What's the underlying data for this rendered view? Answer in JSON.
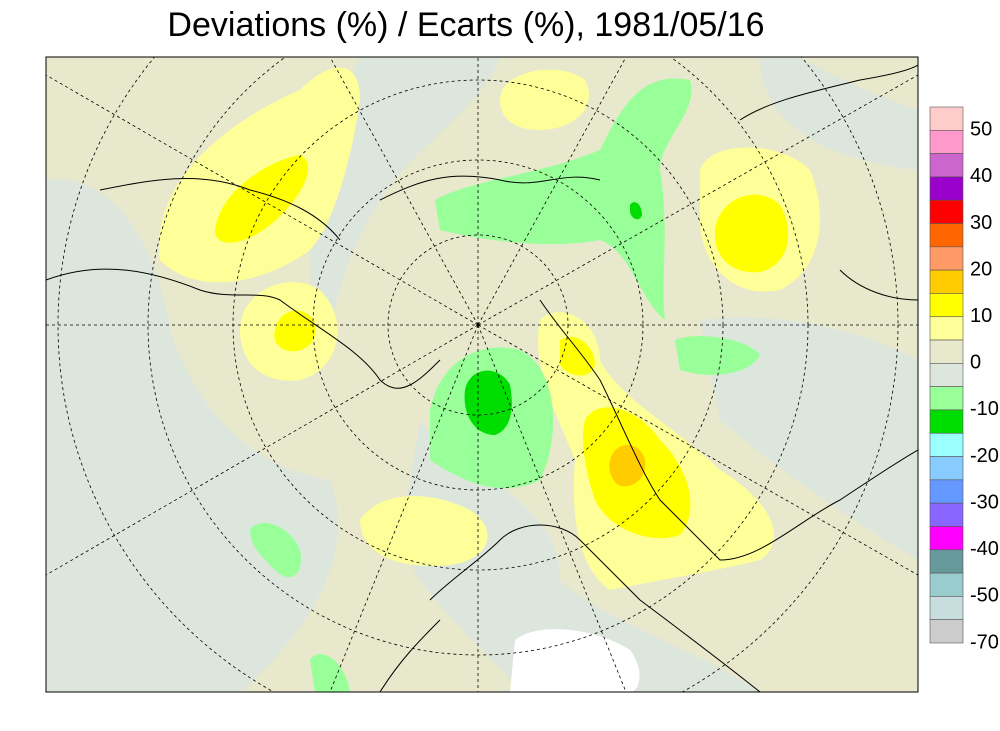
{
  "title": "Deviations (%) / Ecarts (%), 1981/05/16",
  "legend": {
    "colors": [
      "#ffcccc",
      "#ff99cc",
      "#cc66cc",
      "#9900cc",
      "#ff0000",
      "#ff6600",
      "#ff9966",
      "#ffcc00",
      "#ffff00",
      "#ffff99",
      "#e8e8cc",
      "#dde6dd",
      "#99ff99",
      "#00dd00",
      "#99ffff",
      "#88ccff",
      "#6699ff",
      "#8866ff",
      "#ff00ff",
      "#669999",
      "#99cccc",
      "#c8dede",
      "#cccccc"
    ],
    "labels": [
      50,
      40,
      30,
      20,
      10,
      0,
      -10,
      -20,
      -30,
      -40,
      -50,
      -70
    ]
  }
}
